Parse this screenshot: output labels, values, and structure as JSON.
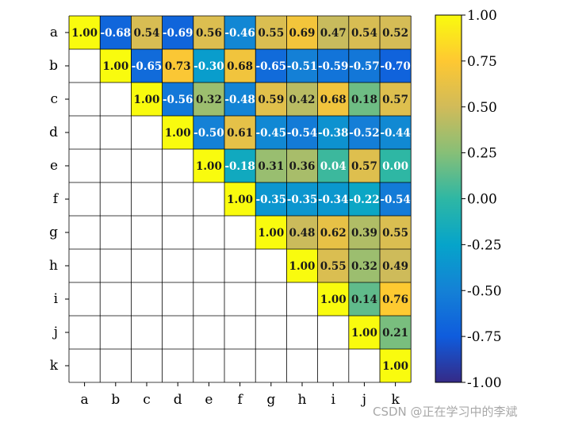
{
  "chart_data": {
    "type": "heatmap",
    "title": "",
    "xlabel": "",
    "ylabel": "",
    "row_labels": [
      "a",
      "b",
      "c",
      "d",
      "e",
      "f",
      "g",
      "h",
      "i",
      "j",
      "k"
    ],
    "col_labels": [
      "a",
      "b",
      "c",
      "d",
      "e",
      "f",
      "g",
      "h",
      "i",
      "j",
      "k"
    ],
    "matrix": [
      [
        1.0,
        -0.68,
        0.54,
        -0.69,
        0.56,
        -0.46,
        0.55,
        0.69,
        0.47,
        0.54,
        0.52
      ],
      [
        null,
        1.0,
        -0.65,
        0.73,
        -0.3,
        0.68,
        -0.65,
        -0.51,
        -0.59,
        -0.57,
        -0.7
      ],
      [
        null,
        null,
        1.0,
        -0.56,
        0.32,
        -0.48,
        0.59,
        0.42,
        0.68,
        0.18,
        0.57
      ],
      [
        null,
        null,
        null,
        1.0,
        -0.5,
        0.61,
        -0.45,
        -0.54,
        -0.38,
        -0.52,
        -0.44
      ],
      [
        null,
        null,
        null,
        null,
        1.0,
        -0.18,
        0.31,
        0.36,
        0.04,
        0.57,
        0.0
      ],
      [
        null,
        null,
        null,
        null,
        null,
        1.0,
        -0.35,
        -0.35,
        -0.34,
        -0.22,
        -0.54
      ],
      [
        null,
        null,
        null,
        null,
        null,
        null,
        1.0,
        0.48,
        0.62,
        0.39,
        0.55
      ],
      [
        null,
        null,
        null,
        null,
        null,
        null,
        null,
        1.0,
        0.55,
        0.32,
        0.49
      ],
      [
        null,
        null,
        null,
        null,
        null,
        null,
        null,
        null,
        1.0,
        0.14,
        0.76
      ],
      [
        null,
        null,
        null,
        null,
        null,
        null,
        null,
        null,
        null,
        1.0,
        0.21
      ],
      [
        null,
        null,
        null,
        null,
        null,
        null,
        null,
        null,
        null,
        null,
        1.0
      ]
    ],
    "colorbar": {
      "vmin": -1.0,
      "vmax": 1.0,
      "ticks": [
        1.0,
        0.75,
        0.5,
        0.25,
        0.0,
        -0.25,
        -0.5,
        -0.75,
        -1.0
      ],
      "tick_labels": [
        "1.00",
        "0.75",
        "0.50",
        "0.25",
        "0.00",
        "-0.25",
        "-0.50",
        "-0.75",
        "-1.00"
      ],
      "colormap": "parula",
      "stops": [
        "#352a87",
        "#0f5cdd",
        "#1481d6",
        "#06a4ca",
        "#2eb7a4",
        "#87bf77",
        "#d1bb59",
        "#fec832",
        "#f9fb0e"
      ]
    },
    "grid": true
  },
  "watermark": "CSDN @正在学习中的李斌"
}
